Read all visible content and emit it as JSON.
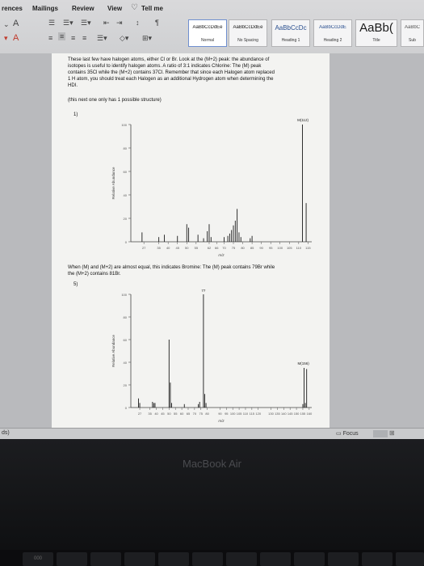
{
  "ribbon": {
    "tabs": [
      "rences",
      "Mailings",
      "Review",
      "View",
      "Tell me"
    ],
    "styles": [
      {
        "sample": "AaBbCcDdEe",
        "name": "Normal",
        "selected": true
      },
      {
        "sample": "AaBbCcDdEe",
        "name": "No Spacing",
        "selected": false
      },
      {
        "sample": "AaBbCcDc",
        "name": "Heading 1",
        "selected": false
      },
      {
        "sample": "AaBbCcDdE",
        "name": "Heading 2",
        "selected": false
      },
      {
        "sample": "AaBb(",
        "name": "Title",
        "selected": false
      },
      {
        "sample": "AaBbC",
        "name": "Sub",
        "selected": false
      }
    ]
  },
  "document": {
    "intro_lines": [
      "These last few have halogen atoms, either Cl or Br. Look at the (M+2) peak: the abundance of",
      "isotopes is useful to identify halogen atoms. A ratio of 3:1 indicates Chlorine: The (M) peak",
      "contains 35Cl while the (M+2) contains 37Cl. Remember that since each Halogen atom replaced",
      "1 H atom, you should treat each Halogen as an additional Hydrogen atom when determining the",
      "HDI."
    ],
    "note": "(this next one only has 1 possible structure)",
    "q1_label": "1)",
    "bromine_lines": [
      "When (M) and (M+2) are almost equal, this indicates Bromine: The (M) peak contains 79Br while",
      "the (M+2) contains 81Br."
    ],
    "q2_label": "5)"
  },
  "status": {
    "focus_label": "Focus",
    "left_text": "ds)"
  },
  "bezel": {
    "brand": "MacBook Air",
    "key_label": "000"
  },
  "chart_data": [
    {
      "type": "bar",
      "title": "",
      "xlabel": "m/z",
      "ylabel": "Relative Abundance",
      "annotation": "M(112)",
      "xlim": [
        20,
        117
      ],
      "ylim": [
        0,
        100
      ],
      "xticks": [
        27,
        35,
        40,
        45,
        50,
        55,
        62,
        66,
        70,
        75,
        80,
        85,
        90,
        95,
        100,
        105,
        110,
        115
      ],
      "yticks": [
        0,
        20,
        40,
        60,
        80,
        100
      ],
      "x": [
        26,
        35,
        38,
        45,
        50,
        51,
        56,
        59,
        61,
        62,
        63,
        70,
        72,
        73,
        74,
        75,
        76,
        77,
        78,
        79,
        84,
        85,
        112,
        114
      ],
      "values": [
        8,
        4,
        6,
        5,
        15,
        12,
        6,
        3,
        9,
        15,
        4,
        4,
        5,
        7,
        10,
        14,
        18,
        28,
        8,
        4,
        3,
        5,
        100,
        33
      ]
    },
    {
      "type": "bar",
      "title": "",
      "xlabel": "m/z",
      "ylabel": "Relative Abundance",
      "annotation": "M(156)",
      "peak_label": "77",
      "xlim": [
        20,
        162
      ],
      "ylim": [
        0,
        100
      ],
      "xticks": [
        27,
        35,
        40,
        45,
        50,
        55,
        60,
        65,
        70,
        75,
        80,
        90,
        95,
        100,
        105,
        110,
        115,
        120,
        130,
        135,
        140,
        145,
        150,
        155,
        160
      ],
      "yticks": [
        0,
        20,
        40,
        60,
        80,
        100
      ],
      "x": [
        26,
        27,
        37,
        38,
        39,
        50,
        51,
        52,
        62,
        73,
        74,
        77,
        78,
        79,
        155,
        156,
        157,
        158
      ],
      "values": [
        8,
        4,
        5,
        4,
        4,
        60,
        22,
        4,
        3,
        3,
        5,
        100,
        12,
        4,
        3,
        35,
        4,
        34
      ]
    }
  ]
}
